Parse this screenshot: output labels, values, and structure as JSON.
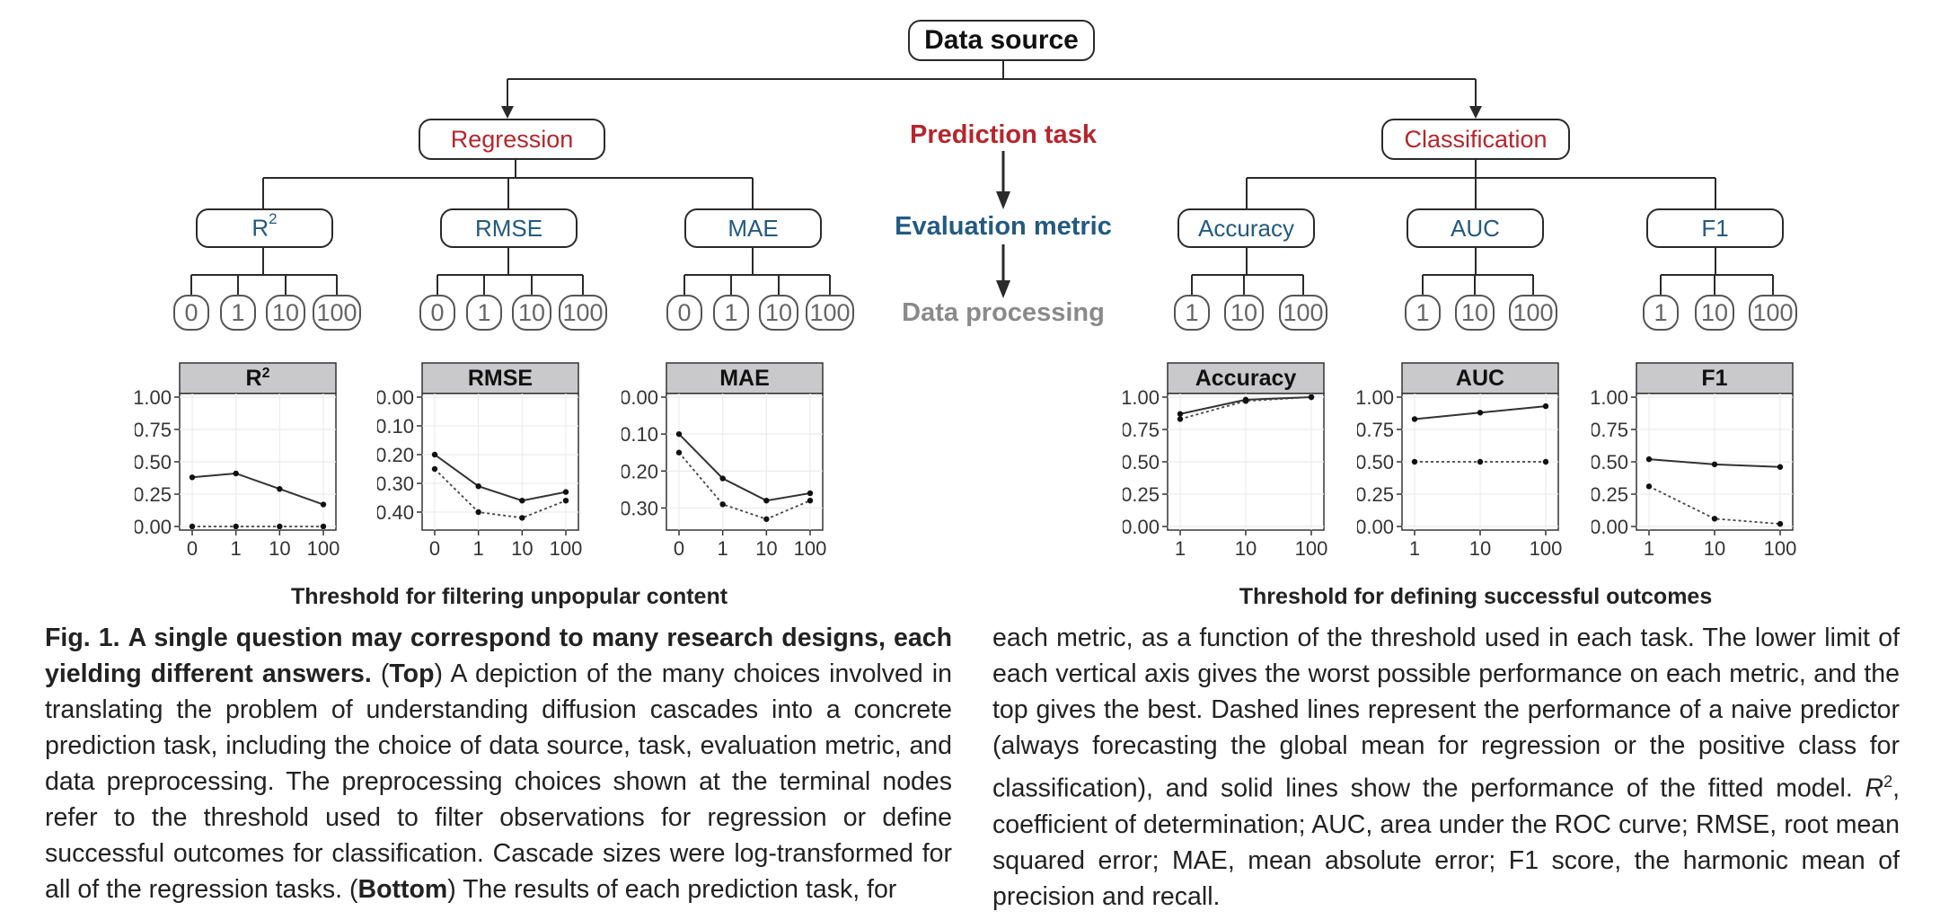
{
  "tree": {
    "root": "Data source",
    "legend": {
      "task": "Prediction task",
      "metric": "Evaluation metric",
      "processing": "Data processing"
    },
    "tasks": [
      {
        "name": "Regression",
        "metrics": [
          {
            "name": "R",
            "sup": "2",
            "leaves": [
              "0",
              "1",
              "10",
              "100"
            ]
          },
          {
            "name": "RMSE",
            "sup": "",
            "leaves": [
              "0",
              "1",
              "10",
              "100"
            ]
          },
          {
            "name": "MAE",
            "sup": "",
            "leaves": [
              "0",
              "1",
              "10",
              "100"
            ]
          }
        ]
      },
      {
        "name": "Classification",
        "metrics": [
          {
            "name": "Accuracy",
            "sup": "",
            "leaves": [
              "1",
              "10",
              "100"
            ]
          },
          {
            "name": "AUC",
            "sup": "",
            "leaves": [
              "1",
              "10",
              "100"
            ]
          },
          {
            "name": "F1",
            "sup": "",
            "leaves": [
              "1",
              "10",
              "100"
            ]
          }
        ]
      }
    ]
  },
  "axis_titles": {
    "regression": "Threshold for filtering unpopular content",
    "classification": "Threshold for defining successful outcomes"
  },
  "chart_data": [
    {
      "type": "line",
      "title": "R",
      "title_sup": "2",
      "categories": [
        "0",
        "1",
        "10",
        "100"
      ],
      "ylim": [
        0,
        1
      ],
      "yticks": [
        "1.00",
        "0.75",
        "0.50",
        "0.25",
        "0.00"
      ],
      "y_inverted": false,
      "series": [
        {
          "style": "solid",
          "values": [
            0.38,
            0.41,
            0.29,
            0.17
          ]
        },
        {
          "style": "dotted",
          "values": [
            0.0,
            0.0,
            0.0,
            0.0
          ]
        }
      ]
    },
    {
      "type": "line",
      "title": "RMSE",
      "title_sup": "",
      "categories": [
        "0",
        "1",
        "10",
        "100"
      ],
      "ylim": [
        0,
        0.45
      ],
      "yticks": [
        "0.00",
        "0.10",
        "0.20",
        "0.30",
        "0.40"
      ],
      "y_inverted": true,
      "series": [
        {
          "style": "solid",
          "values": [
            0.2,
            0.31,
            0.36,
            0.33
          ]
        },
        {
          "style": "dotted",
          "values": [
            0.25,
            0.4,
            0.42,
            0.36
          ]
        }
      ]
    },
    {
      "type": "line",
      "title": "MAE",
      "title_sup": "",
      "categories": [
        "0",
        "1",
        "10",
        "100"
      ],
      "ylim": [
        0,
        0.35
      ],
      "yticks": [
        "0.00",
        "0.10",
        "0.20",
        "0.30"
      ],
      "y_inverted": true,
      "series": [
        {
          "style": "solid",
          "values": [
            0.1,
            0.22,
            0.28,
            0.26
          ]
        },
        {
          "style": "dotted",
          "values": [
            0.15,
            0.29,
            0.33,
            0.28
          ]
        }
      ]
    },
    {
      "type": "line",
      "title": "Accuracy",
      "title_sup": "",
      "categories": [
        "1",
        "10",
        "100"
      ],
      "ylim": [
        0,
        1
      ],
      "yticks": [
        "1.00",
        "0.75",
        "0.50",
        "0.25",
        "0.00"
      ],
      "y_inverted": false,
      "series": [
        {
          "style": "solid",
          "values": [
            0.87,
            0.98,
            1.0
          ]
        },
        {
          "style": "dotted",
          "values": [
            0.83,
            0.97,
            1.0
          ]
        }
      ]
    },
    {
      "type": "line",
      "title": "AUC",
      "title_sup": "",
      "categories": [
        "1",
        "10",
        "100"
      ],
      "ylim": [
        0,
        1
      ],
      "yticks": [
        "1.00",
        "0.75",
        "0.50",
        "0.25",
        "0.00"
      ],
      "y_inverted": false,
      "series": [
        {
          "style": "solid",
          "values": [
            0.83,
            0.88,
            0.93
          ]
        },
        {
          "style": "dotted",
          "values": [
            0.5,
            0.5,
            0.5
          ]
        }
      ]
    },
    {
      "type": "line",
      "title": "F1",
      "title_sup": "",
      "categories": [
        "1",
        "10",
        "100"
      ],
      "ylim": [
        0,
        1
      ],
      "yticks": [
        "1.00",
        "0.75",
        "0.50",
        "0.25",
        "0.00"
      ],
      "y_inverted": false,
      "series": [
        {
          "style": "solid",
          "values": [
            0.52,
            0.48,
            0.46
          ]
        },
        {
          "style": "dotted",
          "values": [
            0.31,
            0.06,
            0.02
          ]
        }
      ]
    }
  ],
  "caption": {
    "fig_label": "Fig. 1.",
    "bold_title": "A single question may correspond to many research designs, each yielding different answers.",
    "top_label": "Top",
    "top_text": "A depiction of the many choices involved in translating the problem of understanding diffusion cascades into a concrete prediction task, including the choice of data source, task, evaluation metric, and data preprocessing. The preprocessing choices shown at the terminal nodes refer to the threshold used to filter observations for regression or define successful outcomes for classification. Cascade sizes were log-transformed for all of the regression tasks.",
    "bottom_label": "Bottom",
    "bottom_text": "The results of each prediction task, for each metric, as a function of the threshold used in each task. The lower limit of each vertical axis gives the worst possible performance on each metric, and the top gives the best. Dashed lines represent the performance of a naive predictor (always forecasting the global mean for regression or the positive class for classification), and solid lines show the performance of the fitted model.",
    "abbrev_r": "R",
    "abbrev_r_sup": "2",
    "abbrev_text": ", coefficient of determination; AUC, area under the ROC curve; RMSE, root mean squared error; MAE, mean absolute error; F1 score, the harmonic mean of precision and recall."
  }
}
